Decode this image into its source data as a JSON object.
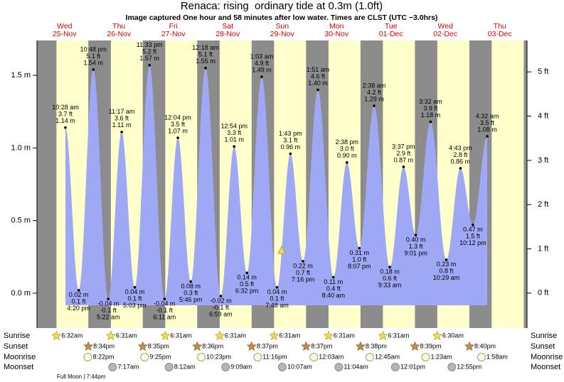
{
  "chart_data": {
    "type": "tide",
    "title": "Renaca: rising  ordinary tide at 0.3m (1.0ft)",
    "subtitle": "Image captured One hour and 58 minutes after low water. Times are CLST (UTC −3.0hrs)",
    "ylim": [
      -0.24,
      1.74
    ],
    "yticks": [
      {
        "value": 0,
        "label": "0.0 m"
      },
      {
        "value": 0.5,
        "label": "0.5 m"
      },
      {
        "value": 1,
        "label": "1.0 m"
      },
      {
        "value": 1.5,
        "label": "1.5 m"
      }
    ],
    "y2lim": [
      -0.79,
      5.71
    ],
    "y2ticks": [
      {
        "value": 0,
        "label": "0 ft"
      },
      {
        "value": 1,
        "label": "1 ft"
      },
      {
        "value": 2,
        "label": "2 ft"
      },
      {
        "value": 3,
        "label": "3 ft"
      },
      {
        "value": 4,
        "label": "4 ft"
      },
      {
        "value": 5,
        "label": "5 ft"
      }
    ],
    "row_labels": [
      "Sunrise",
      "Sunset",
      "Moonrise",
      "Moonset"
    ],
    "full_moon": "Full Moon | 7:44pm",
    "days": [
      {
        "name": "Wed",
        "date": "25-Nov",
        "sunrise": "6:32am",
        "sunset": "8:34pm",
        "moonrise": "8:22pm",
        "tides": [
          {
            "time": "10:28 am",
            "ft_label": "3.7 ft",
            "m": 1.14,
            "m_label": "1.14 m"
          },
          {
            "time": "4:20 pm",
            "ft_label": "0.1 ft",
            "m": 0.02,
            "m_label": "0.02 m"
          },
          {
            "time": "10:48 pm",
            "ft_label": "5.1 ft",
            "m": 1.54,
            "m_label": "1.54 m"
          }
        ]
      },
      {
        "name": "Thu",
        "date": "26-Nov",
        "sunrise": "6:31am",
        "sunset": "8:35pm",
        "moonrise": "9:25pm",
        "moonset": "7:17am",
        "tides": [
          {
            "time": "5:22 am",
            "ft_label": "-0.1 ft",
            "m": -0.04,
            "m_label": "-0.04 m"
          },
          {
            "time": "11:17 am",
            "ft_label": "3.6 ft",
            "m": 1.11,
            "m_label": "1.11 m"
          },
          {
            "time": "5:03 pm",
            "ft_label": "0.1 ft",
            "m": 0.04,
            "m_label": "0.04 m"
          },
          {
            "time": "11:33 pm",
            "ft_label": "5.2 ft",
            "m": 1.57,
            "m_label": "1.57 m"
          }
        ]
      },
      {
        "name": "Fri",
        "date": "27-Nov",
        "sunrise": "6:31am",
        "sunset": "8:36pm",
        "moonrise": "10:23pm",
        "moonset": "8:12am",
        "tides": [
          {
            "time": "6:11 am",
            "ft_label": "-0.1 ft",
            "m": -0.04,
            "m_label": "-0.04 m"
          },
          {
            "time": "12:04 pm",
            "ft_label": "3.5 ft",
            "m": 1.07,
            "m_label": "1.07 m"
          },
          {
            "time": "5:46 pm",
            "ft_label": "0.3 ft",
            "m": 0.08,
            "m_label": "0.08 m"
          }
        ]
      },
      {
        "name": "Sat",
        "date": "28-Nov",
        "sunrise": "6:31am",
        "sunset": "8:37pm",
        "moonrise": "11:16pm",
        "moonset": "9:09am",
        "tides": [
          {
            "time": "12:18 am",
            "ft_label": "5.1 ft",
            "m": 1.55,
            "m_label": "1.55 m"
          },
          {
            "time": "6:59 am",
            "ft_label": "-0.1 ft",
            "m": -0.02,
            "m_label": "-0.02 m"
          },
          {
            "time": "12:54 pm",
            "ft_label": "3.3 ft",
            "m": 1.01,
            "m_label": "1.01 m"
          },
          {
            "time": "6:32 pm",
            "ft_label": "0.5 ft",
            "m": 0.14,
            "m_label": "0.14 m"
          }
        ]
      },
      {
        "name": "Sun",
        "date": "29-Nov",
        "sunrise": "6:31am",
        "sunset": "8:37pm",
        "moonset": "10:07am",
        "tides": [
          {
            "time": "1:03 am",
            "ft_label": "4.9 ft",
            "m": 1.49,
            "m_label": "1.49 m"
          },
          {
            "time": "7:48 am",
            "ft_label": "0.1 ft",
            "m": 0.04,
            "m_label": "0.04 m"
          },
          {
            "time": "1:43 pm",
            "ft_label": "3.1 ft",
            "m": 0.96,
            "m_label": "0.96 m"
          },
          {
            "time": "7:16 pm",
            "ft_label": "0.7 ft",
            "m": 0.22,
            "m_label": "0.22 m"
          }
        ]
      },
      {
        "name": "Mon",
        "date": "30-Nov",
        "sunrise": "6:31am",
        "sunset": "8:38pm",
        "moonrise": "12:03am",
        "moonset": "11:04am",
        "tides": [
          {
            "time": "1:51 am",
            "ft_label": "4.6 ft",
            "m": 1.4,
            "m_label": "1.40 m"
          },
          {
            "time": "8:40 am",
            "ft_label": "0.4 ft",
            "m": 0.11,
            "m_label": "0.11 m"
          },
          {
            "time": "2:38 pm",
            "ft_label": "3.0 ft",
            "m": 0.9,
            "m_label": "0.90 m"
          },
          {
            "time": "8:07 pm",
            "ft_label": "1.0 ft",
            "m": 0.31,
            "m_label": "0.31 m"
          }
        ]
      },
      {
        "name": "Tue",
        "date": "01-Dec",
        "sunrise": "6:31am",
        "sunset": "8:39pm",
        "moonrise": "12:45am",
        "moonset": "12:01pm",
        "tides": [
          {
            "time": "2:38 am",
            "ft_label": "4.2 ft",
            "m": 1.29,
            "m_label": "1.29 m"
          },
          {
            "time": "9:33 am",
            "ft_label": "0.6 ft",
            "m": 0.18,
            "m_label": "0.18 m"
          },
          {
            "time": "3:37 pm",
            "ft_label": "2.9 ft",
            "m": 0.87,
            "m_label": "0.87 m"
          },
          {
            "time": "9:01 pm",
            "ft_label": "1.3 ft",
            "m": 0.4,
            "m_label": "0.40 m"
          }
        ]
      },
      {
        "name": "Wed",
        "date": "02-Dec",
        "sunrise": "6:30am",
        "sunset": "8:40pm",
        "moonrise": "1:23am",
        "moonset": "12:55pm",
        "tides": [
          {
            "time": "3:32 am",
            "ft_label": "3.9 ft",
            "m": 1.18,
            "m_label": "1.18 m"
          },
          {
            "time": "10:29 am",
            "ft_label": "0.8 ft",
            "m": 0.23,
            "m_label": "0.23 m"
          },
          {
            "time": "4:43 pm",
            "ft_label": "2.8 ft",
            "m": 0.86,
            "m_label": "0.86 m"
          },
          {
            "time": "10:12 pm",
            "ft_label": "1.5 ft",
            "m": 0.47,
            "m_label": "0.47 m"
          }
        ]
      },
      {
        "name": "Thu",
        "date": "03-Dec",
        "moonrise": "1:58am",
        "tides": [
          {
            "time": "4:32 am",
            "ft_label": "3.5 ft",
            "m": 1.08,
            "m_label": "1.08 m"
          }
        ]
      }
    ]
  }
}
